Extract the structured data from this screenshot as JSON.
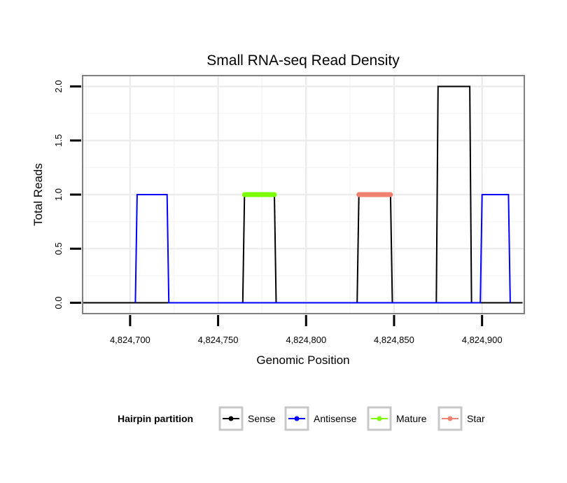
{
  "chart_data": {
    "type": "line",
    "title": "Small RNA-seq Read Density",
    "xlabel": "Genomic Position",
    "ylabel": "Total Reads",
    "xlim": [
      4824673,
      4824924
    ],
    "ylim": [
      -0.1,
      2.1
    ],
    "x_ticks": [
      4824700,
      4824750,
      4824800,
      4824850,
      4824900
    ],
    "x_tick_labels": [
      "4,824,700",
      "4,824,750",
      "4,824,800",
      "4,824,850",
      "4,824,900"
    ],
    "y_ticks": [
      0.0,
      0.5,
      1.0,
      1.5,
      2.0
    ],
    "y_tick_labels": [
      "0.0",
      "0.5",
      "1.0",
      "1.5",
      "2.0"
    ],
    "grid": true,
    "legend": {
      "title": "Hairpin partition",
      "position": "bottom",
      "entries": [
        "Sense",
        "Antisense",
        "Mature",
        "Star"
      ]
    },
    "series": [
      {
        "name": "Sense",
        "color": "#000000",
        "points": [
          [
            4824673,
            0
          ],
          [
            4824764,
            0
          ],
          [
            4824765,
            1
          ],
          [
            4824782,
            1
          ],
          [
            4824783,
            0
          ],
          [
            4824829,
            0
          ],
          [
            4824830,
            1
          ],
          [
            4824848,
            1
          ],
          [
            4824849,
            0
          ],
          [
            4824874,
            0
          ],
          [
            4824875,
            2
          ],
          [
            4824893,
            2
          ],
          [
            4824894,
            0
          ],
          [
            4824923,
            0
          ]
        ]
      },
      {
        "name": "Antisense",
        "color": "#0000ff",
        "points": [
          [
            4824703,
            0
          ],
          [
            4824704,
            1
          ],
          [
            4824721,
            1
          ],
          [
            4824722,
            0
          ],
          [
            4824764,
            0
          ],
          [
            4824783,
            0
          ],
          [
            4824829,
            0
          ],
          [
            4824849,
            0
          ],
          [
            4824874,
            0
          ],
          [
            4824899,
            0
          ],
          [
            4824900,
            1
          ],
          [
            4824915,
            1
          ],
          [
            4824916,
            0
          ]
        ]
      },
      {
        "name": "Mature",
        "color": "#7cfc00",
        "points": [
          [
            4824765,
            1
          ],
          [
            4824782,
            1
          ]
        ]
      },
      {
        "name": "Star",
        "color": "#f08070",
        "points": [
          [
            4824830,
            1
          ],
          [
            4824848,
            1
          ]
        ]
      }
    ]
  }
}
